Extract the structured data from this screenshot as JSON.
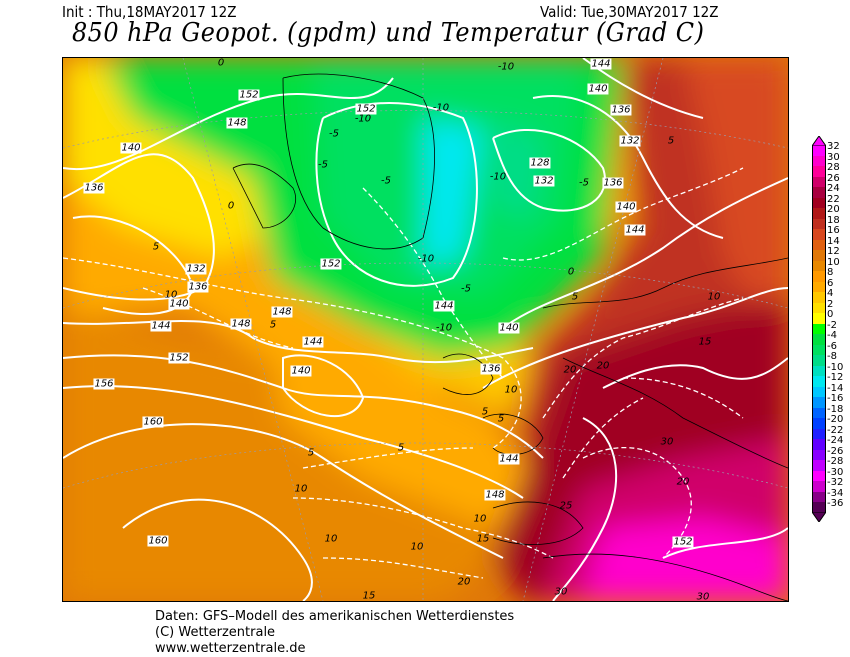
{
  "header": {
    "init": "Init : Thu,18MAY2017 12Z",
    "valid": "Valid: Tue,30MAY2017 12Z",
    "title": "850 hPa Geopot. (gpdm) und Temperatur (Grad C)"
  },
  "legend": {
    "labels": [
      "32",
      "30",
      "28",
      "26",
      "24",
      "22",
      "20",
      "18",
      "16",
      "14",
      "12",
      "10",
      "8",
      "6",
      "4",
      "2",
      "0",
      "-2",
      "-4",
      "-6",
      "-8",
      "-10",
      "-12",
      "-14",
      "-16",
      "-18",
      "-20",
      "-22",
      "-24",
      "-26",
      "-28",
      "-30",
      "-32",
      "-34",
      "-36"
    ],
    "colors": [
      "#ff00ff",
      "#ff00cc",
      "#ff0099",
      "#d0006a",
      "#a80040",
      "#a00020",
      "#b01818",
      "#c03020",
      "#d84820",
      "#e06010",
      "#e07808",
      "#e88800",
      "#ff9900",
      "#ffaa00",
      "#ffc800",
      "#ffe000",
      "#ffff00",
      "#00ff00",
      "#00e040",
      "#00e060",
      "#00dd88",
      "#00e0c0",
      "#00e8f0",
      "#00c8ff",
      "#0096ff",
      "#0064ff",
      "#0040ff",
      "#2020ff",
      "#6000ff",
      "#8800ff",
      "#c000ff",
      "#ff00ff",
      "#cc00cc",
      "#880088",
      "#550055"
    ]
  },
  "map": {
    "geopotential_labels": [
      "152",
      "148",
      "140",
      "136",
      "132",
      "136",
      "140",
      "144",
      "152",
      "156",
      "160",
      "160",
      "148",
      "144",
      "140",
      "148",
      "152",
      "152",
      "144",
      "140",
      "136",
      "144",
      "148",
      "152",
      "128",
      "132",
      "136",
      "140",
      "144",
      "140",
      "136",
      "132",
      "144"
    ],
    "temperature_labels": [
      "-10",
      "-10",
      "-10",
      "-5",
      "-5",
      "-5",
      "-10",
      "-5",
      "-10",
      "-5",
      "-10",
      "0",
      "5",
      "5",
      "10",
      "15",
      "20",
      "20",
      "10",
      "5",
      "5",
      "5",
      "5",
      "10",
      "10",
      "10",
      "10",
      "15",
      "20",
      "25",
      "30",
      "30",
      "20",
      "30",
      "5",
      "10",
      "0",
      "0",
      "5",
      "15"
    ]
  },
  "footer": {
    "line1": "Daten: GFS–Modell des amerikanischen Wetterdienstes",
    "line2": "(C) Wetterzentrale",
    "line3": "www.wetterzentrale.de"
  }
}
